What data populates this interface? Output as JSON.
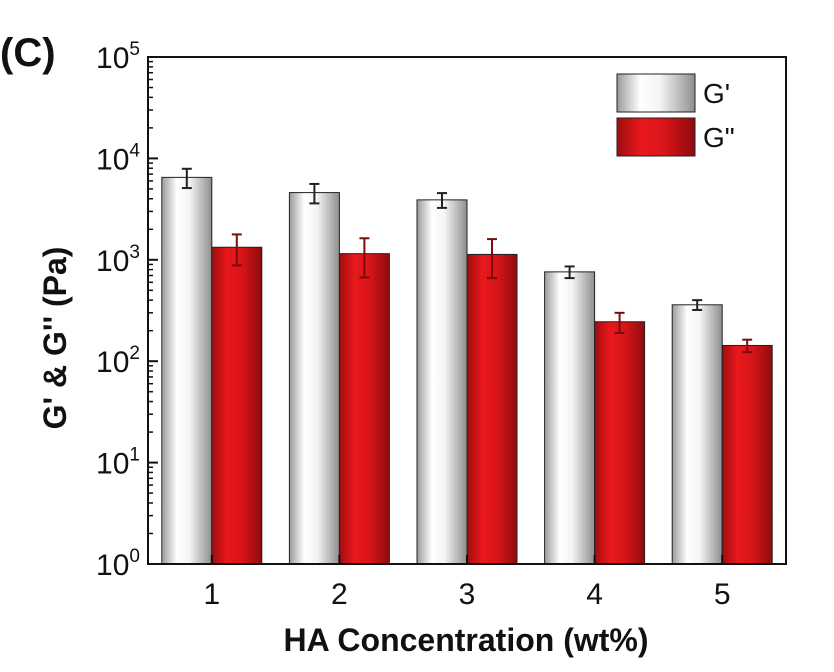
{
  "panel_label": "(C)",
  "chart_data": {
    "type": "bar",
    "xlabel": "HA Concentration (wt%)",
    "ylabel": "G' & G'' (Pa)",
    "categories": [
      "1",
      "2",
      "3",
      "4",
      "5"
    ],
    "y_scale": "log",
    "ylim": [
      1,
      100000
    ],
    "y_ticks": [
      {
        "value": 1,
        "base": "10",
        "exp": "0"
      },
      {
        "value": 10,
        "base": "10",
        "exp": "1"
      },
      {
        "value": 100,
        "base": "10",
        "exp": "2"
      },
      {
        "value": 1000,
        "base": "10",
        "exp": "3"
      },
      {
        "value": 10000,
        "base": "10",
        "exp": "4"
      },
      {
        "value": 100000,
        "base": "10",
        "exp": "5"
      }
    ],
    "grid": false,
    "legend_position": "top-right",
    "series": [
      {
        "name": "G'",
        "color": "#d6d6d6",
        "error_color": "#222222",
        "values": [
          6500,
          4600,
          3900,
          760,
          360
        ],
        "errors": [
          1400,
          1000,
          650,
          100,
          40
        ]
      },
      {
        "name": "G\"",
        "color": "#d31418",
        "error_color": "#7a0c0c",
        "values": [
          1330,
          1150,
          1130,
          245,
          143
        ],
        "errors": [
          450,
          480,
          470,
          55,
          20
        ]
      }
    ]
  }
}
